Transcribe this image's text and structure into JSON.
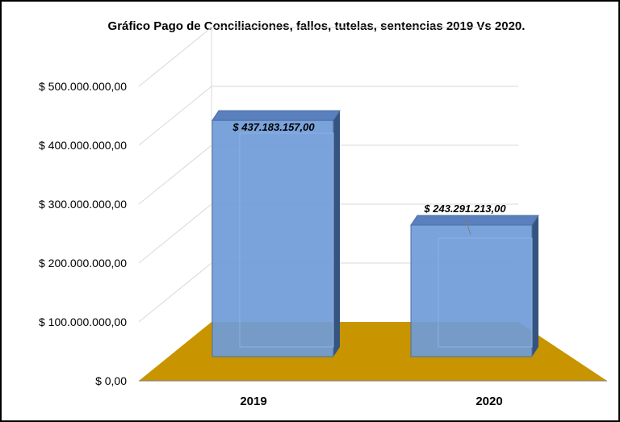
{
  "chart_data": {
    "type": "bar",
    "title": "Gráfico Pago de Conciliaciones, fallos, tutelas, sentencias 2019 Vs 2020.",
    "xlabel": "",
    "ylabel": "",
    "categories": [
      "2019",
      "2020"
    ],
    "values": [
      437183157.0,
      243291213.0
    ],
    "data_labels": [
      "$ 437.183.157,00",
      "$ 243.291.213,00"
    ],
    "ylim": [
      0,
      500000000
    ],
    "yticks": [
      0,
      100000000,
      200000000,
      300000000,
      400000000,
      500000000
    ],
    "ytick_labels": [
      "$ 0,00",
      "$ 100.000.000,00",
      "$ 200.000.000,00",
      "$ 300.000.000,00",
      "$ 400.000.000,00",
      "$ 500.000.000,00"
    ],
    "style": "3d-column",
    "grid": true,
    "legend": "none",
    "colors": {
      "bar": "#6f9bd8",
      "bar_top": "#5a80bd",
      "bar_side": "#35557f",
      "floor": "#c89400",
      "border": "#000000",
      "grid": "#d9d9d9"
    }
  }
}
